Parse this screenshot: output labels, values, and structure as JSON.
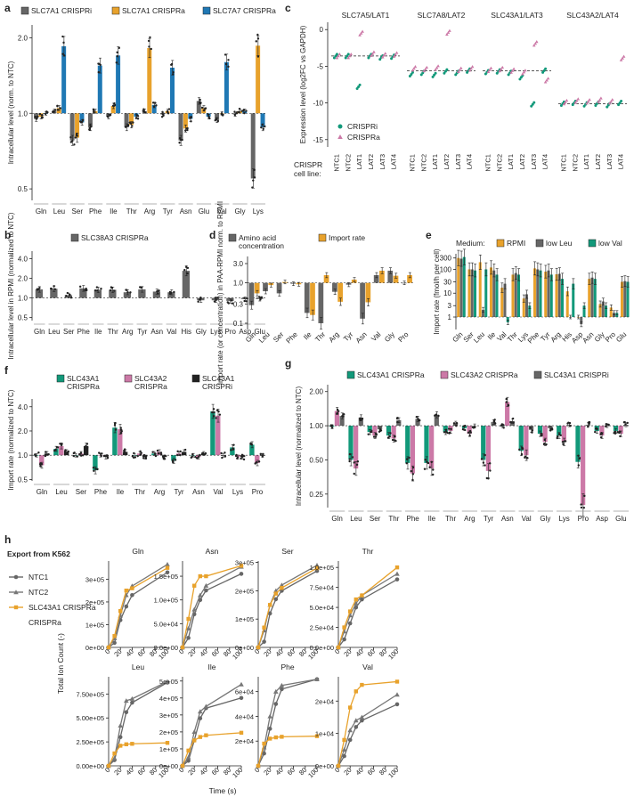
{
  "colors": {
    "crispri": "#666666",
    "crispra_orange": "#E8A22C",
    "crispra_blue": "#1F78B4",
    "green": "#12997A",
    "pink": "#CC79A7",
    "dark": "#555555",
    "black": "#222222"
  },
  "panels": {
    "a": "a",
    "b": "b",
    "c": "c",
    "d": "d",
    "e": "e",
    "f": "f",
    "g": "g",
    "h": "h"
  },
  "chart_data": [
    {
      "id": "a",
      "type": "bar",
      "ylabel": "Intracellular level (norm. to NTC)",
      "yscale": "log",
      "ylim": [
        0.45,
        2.25
      ],
      "yticks": [
        "0.5",
        "1.0",
        "2.0"
      ],
      "categories": [
        "Gln",
        "Leu",
        "Ser",
        "Phe",
        "Ile",
        "Thr",
        "Arg",
        "Tyr",
        "Asn",
        "Glu",
        "Val",
        "Gly",
        "Lys"
      ],
      "series": [
        {
          "name": "SLC7A1 CRISPRi",
          "color": "#666666",
          "values": [
            0.95,
            1.02,
            0.78,
            0.88,
            0.97,
            0.88,
            1.02,
            0.99,
            0.78,
            1.12,
            0.94,
            0.99,
            0.55
          ]
        },
        {
          "name": "SLC7A1 CRISPRa",
          "color": "#E8A22C",
          "values": [
            0.97,
            1.05,
            0.8,
            1.02,
            1.07,
            0.9,
            1.82,
            1.02,
            0.87,
            1.05,
            1.0,
            1.02,
            1.86
          ]
        },
        {
          "name": "SLC7A7 CRISPRa",
          "color": "#1F78B4",
          "values": [
            1.0,
            1.85,
            0.92,
            1.55,
            1.7,
            0.97,
            1.08,
            1.52,
            0.95,
            0.97,
            1.6,
            1.02,
            0.88
          ]
        }
      ]
    },
    {
      "id": "b",
      "type": "bar",
      "ylabel": "Intracellular level in RPMI (normalized to NTC)",
      "yscale": "log",
      "ylim": [
        0.45,
        5.2
      ],
      "yticks": [
        "0.5",
        "1.0",
        "2.0",
        "4.0"
      ],
      "categories": [
        "Gln",
        "Leu",
        "Ser",
        "Phe",
        "Ile",
        "Thr",
        "Arg",
        "Tyr",
        "Asn",
        "Val",
        "His",
        "Gly",
        "Lys",
        "Pro",
        "Asp",
        "Glu"
      ],
      "series": [
        {
          "name": "SLC38A3 CRISPRa",
          "color": "#666666",
          "values": [
            1.35,
            1.38,
            1.1,
            1.4,
            1.33,
            1.33,
            1.22,
            1.35,
            1.25,
            1.22,
            2.6,
            0.92,
            0.92,
            0.9,
            0.96,
            0.96
          ]
        }
      ]
    },
    {
      "id": "c",
      "type": "scatter",
      "ylabel": "Expression level (log2FC vs GAPDH)",
      "ylim": [
        -16,
        1
      ],
      "yticks": [
        "0",
        "-5",
        "-10",
        "-15"
      ],
      "groups": [
        "SLC7A5/LAT1",
        "SLC7A8/LAT2",
        "SLC43A1/LAT3",
        "SLC43A2/LAT4"
      ],
      "cell_lines": [
        "NTC1",
        "NTC2",
        "LAT1",
        "LAT2",
        "LAT3",
        "LAT4"
      ],
      "xaxis_title": "CRISPR cell line:",
      "baselines": [
        -3.6,
        -5.6,
        -5.6,
        -10.1
      ],
      "series": [
        {
          "name": "CRISPRi",
          "color": "#12997A",
          "values": [
            [
              -3.6,
              -3.6,
              -7.8,
              -3.6,
              -3.8,
              -3.7
            ],
            [
              -6.1,
              -5.9,
              -6.2,
              -5.7,
              -5.9,
              -5.6
            ],
            [
              -5.8,
              -5.7,
              -5.9,
              -6.5,
              -10.2,
              -5.6
            ],
            [
              -10.1,
              -10.0,
              -10.2,
              -10.1,
              -10.3,
              -10.0
            ]
          ]
        },
        {
          "name": "CRISPRa",
          "color": "#CC79A7",
          "values": [
            [
              -3.6,
              -3.6,
              -0.5,
              -3.3,
              -3.5,
              -3.4
            ],
            [
              -5.3,
              -5.4,
              -5.2,
              -0.4,
              -5.5,
              -5.3
            ],
            [
              -5.5,
              -5.4,
              -5.6,
              -5.8,
              -1.9,
              -6.9
            ],
            [
              -9.9,
              -9.7,
              -9.8,
              -9.6,
              -9.8,
              -3.9
            ]
          ]
        }
      ]
    },
    {
      "id": "d",
      "type": "bar",
      "ylabel": "Import rate (or concentration) in PAA-RPMI norm. to RPMI",
      "yscale": "log",
      "ylim": [
        0.07,
        4.5
      ],
      "yticks": [
        "0.1",
        "0.3",
        "1.0",
        "3.0"
      ],
      "categories": [
        "Gln",
        "Leu",
        "Ser",
        "Phe",
        "Ile",
        "Thr",
        "Arg",
        "Tyr",
        "Asn",
        "Val",
        "Gly",
        "Pro"
      ],
      "series": [
        {
          "name": "Amino acid concentration",
          "color": "#666666",
          "values": [
            0.28,
            0.62,
            0.55,
            0.95,
            0.18,
            0.1,
            0.6,
            0.9,
            0.13,
            1.55,
            2.0,
            1.0
          ]
        },
        {
          "name": "Import rate",
          "color": "#E8A22C",
          "values": [
            0.55,
            0.88,
            1.05,
            0.92,
            0.16,
            1.55,
            0.34,
            1.2,
            0.33,
            2.0,
            1.5,
            1.55
          ]
        }
      ]
    },
    {
      "id": "e",
      "type": "bar",
      "ylabel": "Import rate (fmol/h per cell)",
      "yscale": "log",
      "ylim": [
        0.3,
        450
      ],
      "yticks": [
        "1",
        "3",
        "10",
        "30",
        "100",
        "300"
      ],
      "categories": [
        "Gln",
        "Ser",
        "Leu",
        "Ile",
        "Val",
        "Thr",
        "Lys",
        "Phe",
        "Tyr",
        "Arg",
        "His",
        "Asp",
        "Asn",
        "Gly",
        "Pro",
        "Glu"
      ],
      "legend_title": "Medium:",
      "series": [
        {
          "name": "RPMI",
          "color": "#E8A22C",
          "values": [
            300,
            100,
            200,
            120,
            17,
            60,
            6,
            110,
            80,
            62,
            12,
            1.0,
            40,
            3.5,
            2.5,
            30
          ]
        },
        {
          "name": "low Leu",
          "color": "#666666",
          "values": [
            280,
            100,
            2.0,
            90,
            25,
            70,
            9,
            100,
            90,
            65,
            1.0,
            0.5,
            45,
            4.5,
            1.5,
            32
          ]
        },
        {
          "name": "low Val",
          "color": "#12997A",
          "values": [
            330,
            90,
            100,
            60,
            0.6,
            60,
            3,
            90,
            60,
            40,
            25,
            3.0,
            40,
            3.0,
            1.5,
            30
          ]
        }
      ]
    },
    {
      "id": "f",
      "type": "bar",
      "ylabel": "Import rate (normalized to NTC)",
      "yscale": "log",
      "ylim": [
        0.48,
        5.0
      ],
      "yticks": [
        "0.5",
        "1.0",
        "2.0",
        "4.0"
      ],
      "categories": [
        "Gln",
        "Leu",
        "Ser",
        "Phe",
        "Ile",
        "Thr",
        "Arg",
        "Tyr",
        "Asn",
        "Val",
        "Lys",
        "Pro"
      ],
      "series": [
        {
          "name": "SLC43A1 CRISPRa",
          "color": "#12997A",
          "values": [
            1.0,
            1.2,
            1.0,
            0.65,
            2.2,
            1.0,
            1.05,
            0.85,
            1.0,
            3.5,
            1.25,
            1.35
          ]
        },
        {
          "name": "SLC43A2 CRISPRa",
          "color": "#CC79A7",
          "values": [
            0.75,
            1.3,
            1.05,
            1.0,
            2.1,
            1.05,
            1.1,
            1.05,
            0.95,
            3.1,
            0.95,
            0.8
          ]
        },
        {
          "name": "SLC43A1 CRISPRi",
          "color": "#222222",
          "values": [
            1.05,
            1.1,
            1.3,
            0.95,
            1.1,
            0.95,
            0.95,
            1.1,
            1.05,
            1.0,
            0.95,
            1.0
          ]
        }
      ]
    },
    {
      "id": "g",
      "type": "bar",
      "ylabel": "Intracellular level (normalized to NTC)",
      "yscale": "log",
      "ylim": [
        0.19,
        2.3
      ],
      "yticks": [
        "0.25",
        "0.50",
        "1.00",
        "2.00"
      ],
      "categories": [
        "Gln",
        "Leu",
        "Ser",
        "Thr",
        "Phe",
        "Ile",
        "Thr",
        "Arg",
        "Tyr",
        "Asn",
        "Val",
        "Gly",
        "Lys",
        "Pro",
        "Asp",
        "Glu"
      ],
      "series": [
        {
          "name": "SLC43A1 CRISPRa",
          "color": "#12997A",
          "values": [
            0.98,
            0.5,
            0.88,
            0.82,
            0.47,
            0.47,
            0.88,
            0.95,
            0.5,
            1.0,
            0.6,
            0.85,
            0.82,
            0.48,
            0.9,
            0.9
          ]
        },
        {
          "name": "SLC43A2 CRISPRa",
          "color": "#CC79A7",
          "values": [
            1.35,
            0.42,
            0.82,
            0.77,
            0.38,
            0.42,
            0.9,
            0.85,
            0.4,
            1.62,
            0.55,
            0.72,
            0.72,
            0.2,
            0.82,
            0.85
          ]
        },
        {
          "name": "SLC43A1 CRISPRi",
          "color": "#666666",
          "values": [
            1.22,
            1.18,
            0.93,
            1.12,
            1.15,
            1.25,
            1.05,
            1.0,
            1.08,
            1.1,
            0.92,
            0.95,
            1.02,
            1.02,
            1.0,
            1.02
          ]
        }
      ]
    },
    {
      "id": "h",
      "type": "line",
      "title": "Export from K562",
      "xlabel": "Time (s)",
      "ylabel": "Total Ion Count (-)",
      "x": [
        0,
        10,
        20,
        30,
        40,
        100
      ],
      "xticks": [
        "0",
        "20",
        "40",
        "60",
        "80",
        "100"
      ],
      "series_names": [
        "NTC1",
        "NTC2",
        "SLC43A1 CRISPRa"
      ],
      "series_colors": [
        "#666666",
        "#777777",
        "#E8A22C"
      ],
      "subplots": [
        {
          "title": "Gln",
          "ymax": 380000,
          "yticks": [
            0,
            100000,
            200000,
            300000
          ],
          "yticklabels": [
            "0e+00",
            "1e+05",
            "2e+05",
            "3e+05"
          ],
          "values": [
            [
              0,
              20000,
              120000,
              180000,
              230000,
              330000
            ],
            [
              0,
              40000,
              140000,
              230000,
              270000,
              365000
            ],
            [
              0,
              50000,
              160000,
              250000,
              260000,
              350000
            ]
          ]
        },
        {
          "title": "Asn",
          "ymax": 182000,
          "yticks": [
            0,
            50000,
            100000,
            150000
          ],
          "yticklabels": [
            "0.0e+00",
            "5.0e+04",
            "1.0e+05",
            "1.5e+05"
          ],
          "values": [
            [
              0,
              20000,
              70000,
              100000,
              120000,
              155000
            ],
            [
              0,
              40000,
              80000,
              110000,
              130000,
              170000
            ],
            [
              0,
              60000,
              130000,
              150000,
              150000,
              172000
            ]
          ]
        },
        {
          "title": "Ser",
          "ymax": 305000,
          "yticks": [
            0,
            100000,
            200000,
            300000
          ],
          "yticklabels": [
            "0e+00",
            "1e+05",
            "2e+05",
            "3e+05"
          ],
          "values": [
            [
              0,
              20000,
              120000,
              170000,
              200000,
              270000
            ],
            [
              0,
              60000,
              150000,
              200000,
              220000,
              290000
            ],
            [
              0,
              70000,
              150000,
              190000,
              210000,
              280000
            ]
          ]
        },
        {
          "title": "Thr",
          "ymax": 108000,
          "yticks": [
            0,
            25000,
            50000,
            75000,
            100000
          ],
          "yticklabels": [
            "0.0e+00",
            "2.5e+04",
            "5.0e+04",
            "7.5e+04",
            "1.0e+05"
          ],
          "values": [
            [
              0,
              10000,
              30000,
              50000,
              60000,
              85000
            ],
            [
              0,
              20000,
              40000,
              55000,
              65000,
              92000
            ],
            [
              0,
              25000,
              45000,
              60000,
              65000,
              100000
            ]
          ]
        },
        {
          "title": "Leu",
          "ymax": 930000,
          "yticks": [
            0,
            250000,
            500000,
            750000
          ],
          "yticklabels": [
            "0.00e+00",
            "2.50e+05",
            "5.00e+05",
            "7.50e+05"
          ],
          "values": [
            [
              0,
              60000,
              300000,
              560000,
              660000,
              870000
            ],
            [
              0,
              80000,
              420000,
              680000,
              700000,
              880000
            ],
            [
              0,
              130000,
              210000,
              225000,
              230000,
              240000
            ]
          ]
        },
        {
          "title": "Ile",
          "ymax": 525000,
          "yticks": [
            0,
            100000,
            200000,
            300000,
            400000,
            500000
          ],
          "yticklabels": [
            "0e+00",
            "1e+05",
            "2e+05",
            "3e+05",
            "4e+05",
            "5e+05"
          ],
          "values": [
            [
              0,
              30000,
              150000,
              280000,
              340000,
              400000
            ],
            [
              0,
              50000,
              200000,
              320000,
              350000,
              480000
            ],
            [
              0,
              90000,
              150000,
              170000,
              180000,
              195000
            ]
          ]
        },
        {
          "title": "Phe",
          "ymax": 72000,
          "yticks": [
            20000,
            40000,
            60000
          ],
          "yticklabels": [
            "2e+04",
            "4e+04",
            "6e+04"
          ],
          "values": [
            [
              0,
              10000,
              30000,
              50000,
              62000,
              70000
            ],
            [
              0,
              15000,
              40000,
              60000,
              65000,
              70000
            ],
            [
              0,
              18000,
              22000,
              23000,
              23500,
              24000
            ]
          ]
        },
        {
          "title": "Val",
          "ymax": 27500,
          "yticks": [
            0,
            10000,
            20000
          ],
          "yticklabels": [
            "0e+00",
            "1e+04",
            "2e+04"
          ],
          "values": [
            [
              0,
              3000,
              8000,
              12000,
              14000,
              19000
            ],
            [
              0,
              5000,
              11000,
              14000,
              15000,
              22000
            ],
            [
              0,
              8000,
              18000,
              23000,
              25000,
              26000
            ]
          ]
        }
      ]
    }
  ]
}
